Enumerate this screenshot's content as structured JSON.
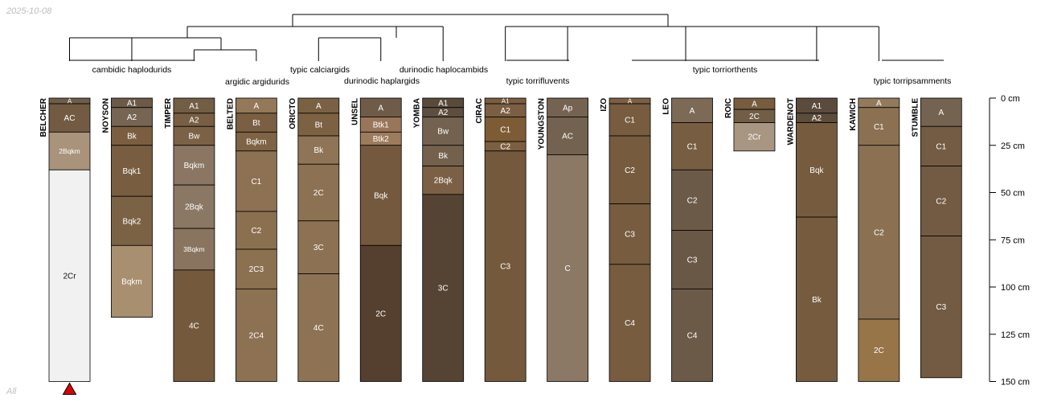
{
  "date_stamp": "2025-10-08",
  "corner_label": "All",
  "chart_data": {
    "type": "soil-profile-sketch",
    "title": "",
    "depth_axis": {
      "unit": "cm",
      "range": [
        0,
        150
      ],
      "ticks": [
        0,
        25,
        50,
        75,
        100,
        125,
        150
      ],
      "tick_labels": [
        "0 cm",
        "25 cm",
        "50 cm",
        "75 cm",
        "100 cm",
        "125 cm",
        "150 cm"
      ]
    },
    "marker": {
      "profile": "BELCHER",
      "symbol": "triangle",
      "color": "#dd0000"
    },
    "taxa": [
      {
        "label": "cambidic haplodurids"
      },
      {
        "label": "argidic argidurids"
      },
      {
        "label": "typic calciargids"
      },
      {
        "label": "durinodic haplargids"
      },
      {
        "label": "durinodic haplocambids"
      },
      {
        "label": "typic torrifluvents"
      },
      {
        "label": "typic torriorthents"
      },
      {
        "label": "typic torripsamments"
      }
    ],
    "profiles": [
      {
        "name": "BELCHER",
        "horizons": [
          {
            "name": "A",
            "top": 0,
            "bottom": 3,
            "color": "#6f5d49"
          },
          {
            "name": "AC",
            "top": 3,
            "bottom": 18,
            "color": "#725b42"
          },
          {
            "name": "2Bqkm",
            "top": 18,
            "bottom": 38,
            "color": "#a9937b"
          },
          {
            "name": "2Cr",
            "top": 38,
            "bottom": 150,
            "color": "#f1f1f1"
          }
        ]
      },
      {
        "name": "NOYSON",
        "horizons": [
          {
            "name": "A1",
            "top": 0,
            "bottom": 5,
            "color": "#6b5a48"
          },
          {
            "name": "A2",
            "top": 5,
            "bottom": 15,
            "color": "#756552"
          },
          {
            "name": "Bk",
            "top": 15,
            "bottom": 25,
            "color": "#7b5e3f"
          },
          {
            "name": "Bqk1",
            "top": 25,
            "bottom": 52,
            "color": "#795d40"
          },
          {
            "name": "Bqk2",
            "top": 52,
            "bottom": 78,
            "color": "#7c6245"
          },
          {
            "name": "Bqkm",
            "top": 78,
            "bottom": 116,
            "color": "#a88f70"
          }
        ]
      },
      {
        "name": "TIMPER",
        "horizons": [
          {
            "name": "A1",
            "top": 0,
            "bottom": 8,
            "color": "#725d45"
          },
          {
            "name": "A2",
            "top": 8,
            "bottom": 15,
            "color": "#785f43"
          },
          {
            "name": "Bw",
            "top": 15,
            "bottom": 25,
            "color": "#7b6146"
          },
          {
            "name": "Bqkm",
            "top": 25,
            "bottom": 46,
            "color": "#8a7662"
          },
          {
            "name": "2Bqk",
            "top": 46,
            "bottom": 69,
            "color": "#8a7764"
          },
          {
            "name": "3Bqkm",
            "top": 69,
            "bottom": 91,
            "color": "#89745f"
          },
          {
            "name": "4C",
            "top": 91,
            "bottom": 150,
            "color": "#74593c"
          }
        ]
      },
      {
        "name": "BELTED",
        "horizons": [
          {
            "name": "A",
            "top": 0,
            "bottom": 8,
            "color": "#94785a"
          },
          {
            "name": "Bt",
            "top": 8,
            "bottom": 18,
            "color": "#7b5f42"
          },
          {
            "name": "Bqkm",
            "top": 18,
            "bottom": 28,
            "color": "#7f6345"
          },
          {
            "name": "C1",
            "top": 28,
            "bottom": 60,
            "color": "#8c7152"
          },
          {
            "name": "C2",
            "top": 60,
            "bottom": 80,
            "color": "#8b7050"
          },
          {
            "name": "2C3",
            "top": 80,
            "bottom": 101,
            "color": "#8c7151"
          },
          {
            "name": "2C4",
            "top": 101,
            "bottom": 150,
            "color": "#8c7152"
          }
        ]
      },
      {
        "name": "ORICTO",
        "horizons": [
          {
            "name": "A",
            "top": 0,
            "bottom": 8,
            "color": "#7b6144"
          },
          {
            "name": "Bt",
            "top": 8,
            "bottom": 20,
            "color": "#7c6142"
          },
          {
            "name": "Bk",
            "top": 20,
            "bottom": 35,
            "color": "#8f7457"
          },
          {
            "name": "2C",
            "top": 35,
            "bottom": 65,
            "color": "#8c7152"
          },
          {
            "name": "3C",
            "top": 65,
            "bottom": 93,
            "color": "#8c7152"
          },
          {
            "name": "4C",
            "top": 93,
            "bottom": 150,
            "color": "#8d7253"
          }
        ]
      },
      {
        "name": "UNSEL",
        "horizons": [
          {
            "name": "A",
            "top": 0,
            "bottom": 10,
            "color": "#6f5c48"
          },
          {
            "name": "Btk1",
            "top": 10,
            "bottom": 18,
            "color": "#99765a"
          },
          {
            "name": "Btk2",
            "top": 18,
            "bottom": 25,
            "color": "#9d7b5d"
          },
          {
            "name": "Bqk",
            "top": 25,
            "bottom": 78,
            "color": "#74593e"
          },
          {
            "name": "2C",
            "top": 78,
            "bottom": 150,
            "color": "#553f2e"
          }
        ]
      },
      {
        "name": "YOMBA",
        "horizons": [
          {
            "name": "A1",
            "top": 0,
            "bottom": 5,
            "color": "#5a4a3b"
          },
          {
            "name": "A2",
            "top": 5,
            "bottom": 10,
            "color": "#5d4e3f"
          },
          {
            "name": "Bw",
            "top": 10,
            "bottom": 25,
            "color": "#736250"
          },
          {
            "name": "Bk",
            "top": 25,
            "bottom": 36,
            "color": "#74614d"
          },
          {
            "name": "2Bqk",
            "top": 36,
            "bottom": 51,
            "color": "#7c6045"
          },
          {
            "name": "3C",
            "top": 51,
            "bottom": 150,
            "color": "#554434"
          }
        ]
      },
      {
        "name": "CIRAC",
        "horizons": [
          {
            "name": "A1",
            "top": 0,
            "bottom": 3,
            "color": "#7a5e40"
          },
          {
            "name": "A2",
            "top": 3,
            "bottom": 10,
            "color": "#7b5f42"
          },
          {
            "name": "C1",
            "top": 10,
            "bottom": 23,
            "color": "#7d5c35"
          },
          {
            "name": "C2",
            "top": 23,
            "bottom": 28,
            "color": "#7c5f40"
          },
          {
            "name": "C3",
            "top": 28,
            "bottom": 150,
            "color": "#74593c"
          }
        ]
      },
      {
        "name": "YOUNGSTON",
        "horizons": [
          {
            "name": "Ap",
            "top": 0,
            "bottom": 10,
            "color": "#736350"
          },
          {
            "name": "AC",
            "top": 10,
            "bottom": 30,
            "color": "#73624f"
          },
          {
            "name": "C",
            "top": 30,
            "bottom": 150,
            "color": "#8b7965"
          }
        ]
      },
      {
        "name": "IZO",
        "horizons": [
          {
            "name": "A",
            "top": 0,
            "bottom": 3,
            "color": "#7b6043"
          },
          {
            "name": "C1",
            "top": 3,
            "bottom": 20,
            "color": "#775c40"
          },
          {
            "name": "C2",
            "top": 20,
            "bottom": 56,
            "color": "#765b3f"
          },
          {
            "name": "C3",
            "top": 56,
            "bottom": 88,
            "color": "#775c40"
          },
          {
            "name": "C4",
            "top": 88,
            "bottom": 150,
            "color": "#775c40"
          }
        ]
      },
      {
        "name": "LEO",
        "horizons": [
          {
            "name": "A",
            "top": 0,
            "bottom": 13,
            "color": "#7c6a57"
          },
          {
            "name": "C1",
            "top": 13,
            "bottom": 38,
            "color": "#775d42"
          },
          {
            "name": "C2",
            "top": 38,
            "bottom": 70,
            "color": "#6c5a48"
          },
          {
            "name": "C3",
            "top": 70,
            "bottom": 101,
            "color": "#6a5846"
          },
          {
            "name": "C4",
            "top": 101,
            "bottom": 150,
            "color": "#6c5a48"
          }
        ]
      },
      {
        "name": "ROIC",
        "horizons": [
          {
            "name": "A",
            "top": 0,
            "bottom": 6,
            "color": "#775c40"
          },
          {
            "name": "2C",
            "top": 6,
            "bottom": 13,
            "color": "#725d46"
          },
          {
            "name": "2Cr",
            "top": 13,
            "bottom": 28,
            "color": "#a99682"
          }
        ]
      },
      {
        "name": "WARDENOT",
        "horizons": [
          {
            "name": "A1",
            "top": 0,
            "bottom": 8,
            "color": "#5b4b3c"
          },
          {
            "name": "A2",
            "top": 8,
            "bottom": 13,
            "color": "#5c4c3c"
          },
          {
            "name": "Bqk",
            "top": 13,
            "bottom": 63,
            "color": "#765b3f"
          },
          {
            "name": "Bk",
            "top": 63,
            "bottom": 150,
            "color": "#765b3f"
          }
        ]
      },
      {
        "name": "KAWICH",
        "horizons": [
          {
            "name": "A",
            "top": 0,
            "bottom": 5,
            "color": "#937a5d"
          },
          {
            "name": "C1",
            "top": 5,
            "bottom": 25,
            "color": "#8b7152"
          },
          {
            "name": "C2",
            "top": 25,
            "bottom": 117,
            "color": "#8b7152"
          },
          {
            "name": "2C",
            "top": 117,
            "bottom": 150,
            "color": "#977549"
          }
        ]
      },
      {
        "name": "STUMBLE",
        "horizons": [
          {
            "name": "A",
            "top": 0,
            "bottom": 15,
            "color": "#736350"
          },
          {
            "name": "C1",
            "top": 15,
            "bottom": 36,
            "color": "#745c44"
          },
          {
            "name": "C2",
            "top": 36,
            "bottom": 73,
            "color": "#735b43"
          },
          {
            "name": "C3",
            "top": 73,
            "bottom": 148,
            "color": "#735b43"
          }
        ]
      }
    ]
  }
}
